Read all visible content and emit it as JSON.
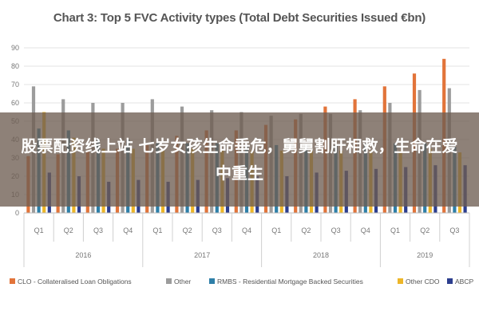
{
  "chart_data": {
    "type": "bar",
    "title": "Chart 3: Top 5 FVC Activity types (Total Debt Securities Issued €bn)",
    "ylim": [
      0,
      90
    ],
    "yticks": [
      0,
      10,
      20,
      30,
      40,
      50,
      60,
      70,
      80,
      90
    ],
    "grid": true,
    "legend_position": "bottom",
    "categories": [
      "Q1",
      "Q2",
      "Q3",
      "Q4",
      "Q1",
      "Q2",
      "Q3",
      "Q4",
      "Q1",
      "Q2",
      "Q3",
      "Q4",
      "Q1",
      "Q2",
      "Q3"
    ],
    "groups": [
      {
        "label": "2016",
        "count": 4
      },
      {
        "label": "2017",
        "count": 4
      },
      {
        "label": "2018",
        "count": 4
      },
      {
        "label": "2019",
        "count": 3
      }
    ],
    "series": [
      {
        "name": "CLO - Collateralised Loan Obligations",
        "color": "#E2743A",
        "values": [
          31,
          32,
          34,
          35,
          37,
          42,
          45,
          45,
          48,
          51,
          58,
          62,
          69,
          76,
          84
        ]
      },
      {
        "name": "Other",
        "color": "#9C9C9C",
        "values": [
          69,
          62,
          60,
          60,
          62,
          58,
          56,
          55,
          53,
          54,
          54,
          56,
          60,
          67,
          68
        ]
      },
      {
        "name": "RMBS - Residential Mortgage Backed Securities",
        "color": "#2E7FA8",
        "values": [
          46,
          45,
          40,
          40,
          38,
          38,
          38,
          37,
          37,
          37,
          37,
          38,
          38,
          38,
          36
        ]
      },
      {
        "name": "Other CDO",
        "color": "#EDB629",
        "values": [
          55,
          41,
          35,
          35,
          34,
          35,
          34,
          34,
          34,
          34,
          34,
          34,
          34,
          35,
          33
        ]
      },
      {
        "name": "ABCP",
        "color": "#2C3E8E",
        "values": [
          22,
          20,
          17,
          18,
          17,
          18,
          19,
          20,
          20,
          22,
          23,
          24,
          25,
          26,
          26
        ]
      }
    ]
  },
  "overlay": {
    "text": "股票配资线上站 七岁女孩生命垂危，舅舅割肝相救，生命在爱中重生"
  }
}
